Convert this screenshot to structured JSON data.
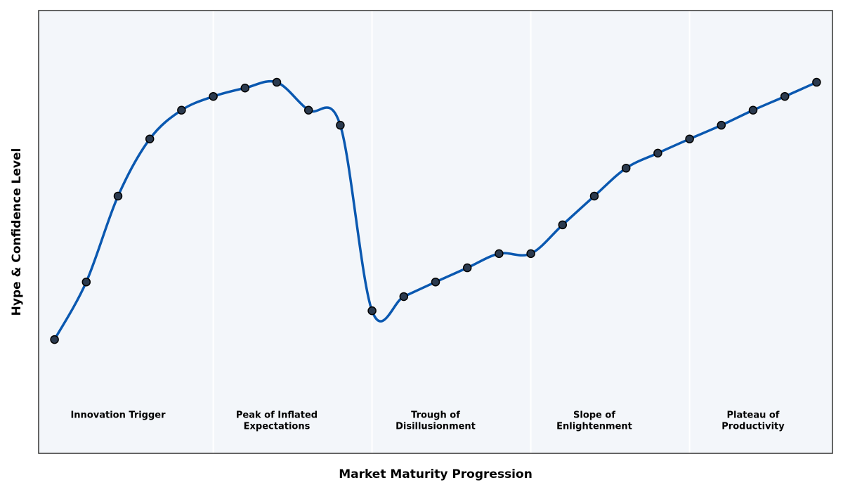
{
  "chart_data": {
    "type": "line",
    "x_label": "Market Maturity Progression",
    "y_label": "Hype & Confidence Level",
    "x": [
      0,
      1,
      2,
      3,
      4,
      5,
      6,
      7,
      8,
      9,
      10,
      11,
      12,
      13,
      14,
      15,
      16,
      17,
      18,
      19,
      20,
      21,
      22,
      23,
      24
    ],
    "series": [
      {
        "color": "#0a58b0",
        "marker_color": "#2b3a4e",
        "values": [
          25.7,
          38.7,
          58.1,
          71.0,
          77.5,
          80.6,
          82.5,
          83.8,
          77.5,
          74.1,
          32.2,
          35.4,
          38.7,
          41.9,
          45.1,
          45.1,
          51.6,
          58.1,
          64.4,
          67.8,
          71.0,
          74.1,
          77.5,
          80.6,
          83.8
        ]
      }
    ],
    "xlim": [
      -0.5,
      24.5
    ],
    "ylim": [
      0,
      100
    ],
    "phase_dividers": [
      5,
      10,
      15,
      20
    ],
    "phases": [
      [
        "Innovation Trigger"
      ],
      [
        "Peak of Inflated",
        "Expectations"
      ],
      [
        "Trough of",
        "Disillusionment"
      ],
      [
        "Slope of",
        "Enlightenment"
      ],
      [
        "Plateau of",
        "Productivity"
      ]
    ],
    "background": "#f3f6fa"
  }
}
